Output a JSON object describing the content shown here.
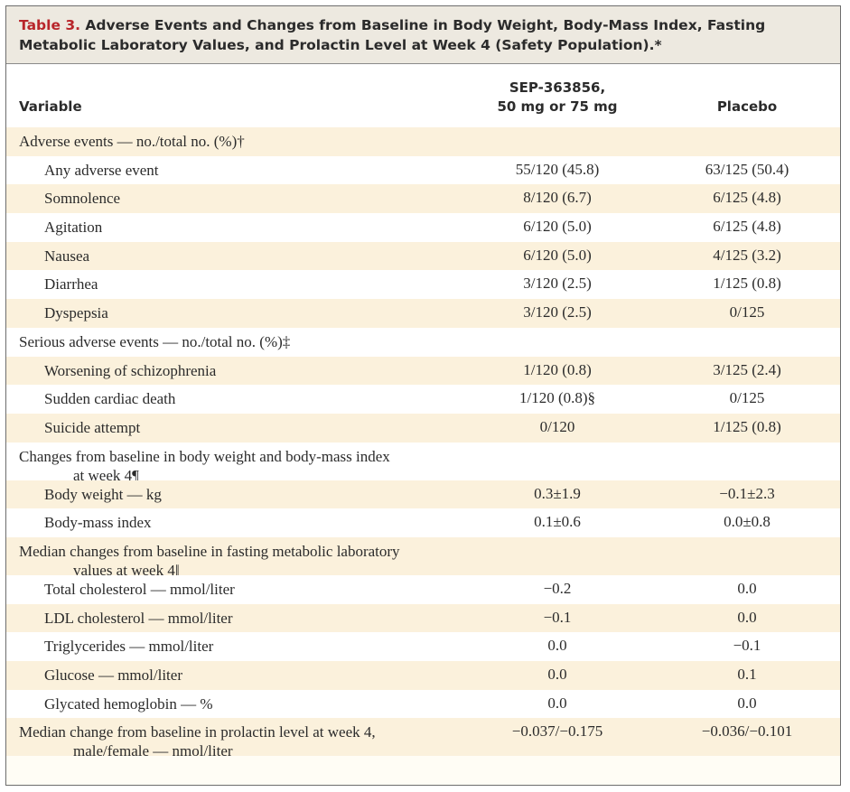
{
  "caption": {
    "label": "Table 3.",
    "text": " Adverse Events and Changes from Baseline in Body Weight, Body-Mass Index, Fasting Metabolic Laboratory Values, and Prolactin Level at Week 4 (Safety Population).*"
  },
  "header": {
    "variable": "Variable",
    "drug_line1": "SEP-363856,",
    "drug_line2": "50 mg or 75 mg",
    "placebo": "Placebo"
  },
  "rows": [
    {
      "label": "Adverse events — no./total no. (%)†",
      "cont": "",
      "drug": "",
      "placebo": ""
    },
    {
      "label": "Any adverse event",
      "cont": "",
      "drug": "55/120 (45.8)",
      "placebo": "63/125 (50.4)"
    },
    {
      "label": "Somnolence",
      "cont": "",
      "drug": "8/120 (6.7)",
      "placebo": "6/125 (4.8)"
    },
    {
      "label": "Agitation",
      "cont": "",
      "drug": "6/120 (5.0)",
      "placebo": "6/125 (4.8)"
    },
    {
      "label": "Nausea",
      "cont": "",
      "drug": "6/120 (5.0)",
      "placebo": "4/125 (3.2)"
    },
    {
      "label": "Diarrhea",
      "cont": "",
      "drug": "3/120 (2.5)",
      "placebo": "1/125 (0.8)"
    },
    {
      "label": "Dyspepsia",
      "cont": "",
      "drug": "3/120 (2.5)",
      "placebo": "0/125"
    },
    {
      "label": "Serious adverse events — no./total no. (%)‡",
      "cont": "",
      "drug": "",
      "placebo": ""
    },
    {
      "label": "Worsening of schizophrenia",
      "cont": "",
      "drug": "1/120 (0.8)",
      "placebo": "3/125 (2.4)"
    },
    {
      "label": "Sudden cardiac death",
      "cont": "",
      "drug": "1/120 (0.8)§",
      "placebo": "0/125"
    },
    {
      "label": "Suicide attempt",
      "cont": "",
      "drug": "0/120",
      "placebo": "1/125 (0.8)"
    },
    {
      "label": "Changes from baseline in body weight and body-mass index",
      "cont": "at week 4¶",
      "drug": "",
      "placebo": ""
    },
    {
      "label": "Body weight — kg",
      "cont": "",
      "drug": "0.3±1.9",
      "placebo": "−0.1±2.3"
    },
    {
      "label": "Body-mass index",
      "cont": "",
      "drug": "0.1±0.6",
      "placebo": "0.0±0.8"
    },
    {
      "label": "Median changes from baseline in fasting metabolic laboratory",
      "cont": "values at week 4‖",
      "drug": "",
      "placebo": ""
    },
    {
      "label": "Total cholesterol — mmol/liter",
      "cont": "",
      "drug": "−0.2",
      "placebo": "0.0"
    },
    {
      "label": "LDL cholesterol — mmol/liter",
      "cont": "",
      "drug": "−0.1",
      "placebo": "0.0"
    },
    {
      "label": "Triglycerides — mmol/liter",
      "cont": "",
      "drug": "0.0",
      "placebo": "−0.1"
    },
    {
      "label": "Glucose — mmol/liter",
      "cont": "",
      "drug": "0.0",
      "placebo": "0.1"
    },
    {
      "label": "Glycated hemoglobin — %",
      "cont": "",
      "drug": "0.0",
      "placebo": "0.0"
    },
    {
      "label": "Median change from baseline in prolactin level at week 4,",
      "cont": "male/female — nmol/liter",
      "drug": "−0.037/−0.175",
      "placebo": "−0.036/−0.101"
    }
  ]
}
